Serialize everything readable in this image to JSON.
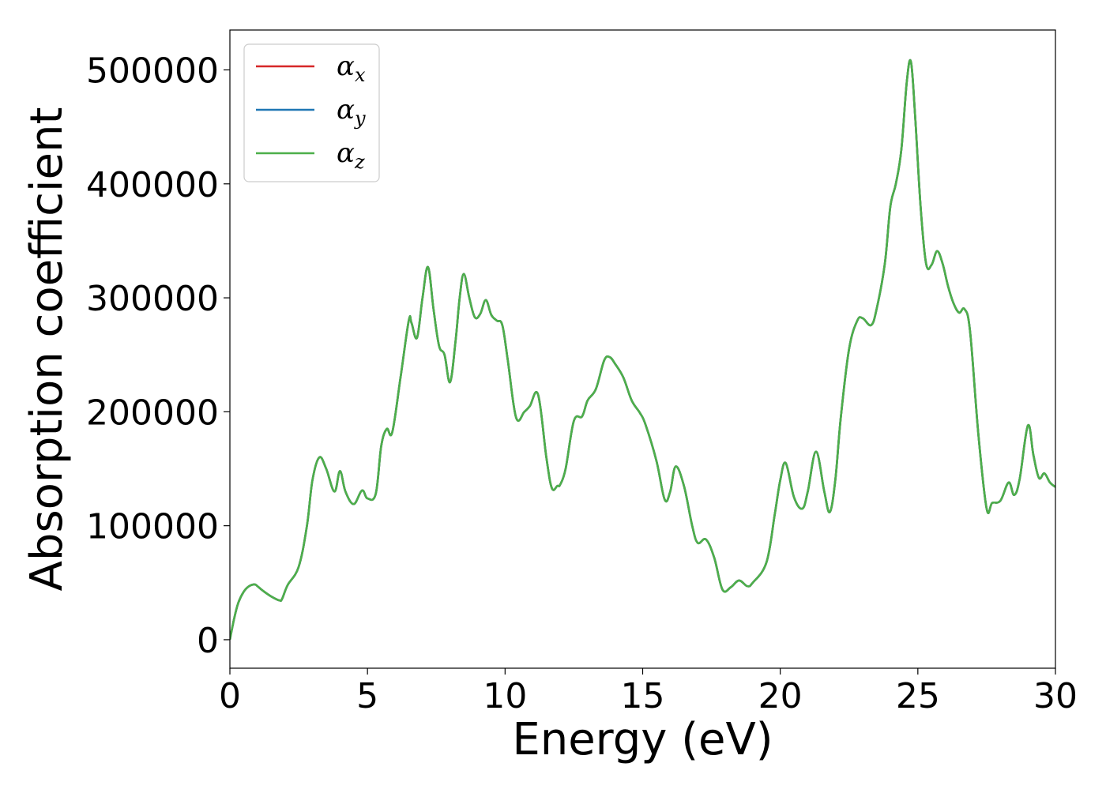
{
  "chart_data": {
    "type": "line",
    "title": "",
    "xlabel": "Energy (eV)",
    "ylabel": "Absorption coefficient",
    "xlim": [
      0,
      30
    ],
    "ylim": [
      -25000,
      535000
    ],
    "x_ticks": [
      0,
      5,
      10,
      15,
      20,
      25,
      30
    ],
    "x_tick_labels": [
      "0",
      "5",
      "10",
      "15",
      "20",
      "25",
      "30"
    ],
    "y_ticks": [
      0,
      100000,
      200000,
      300000,
      400000,
      500000
    ],
    "y_tick_labels": [
      "0",
      "100000",
      "200000",
      "300000",
      "400000",
      "500000"
    ],
    "grid": false,
    "legend_position": "top-left",
    "colors": {
      "alpha_x": "#d62728",
      "alpha_y": "#1f77b4",
      "alpha_z": "#4daf4a"
    },
    "series": [
      {
        "name": "α_x",
        "legend_symbol": "α",
        "legend_subscript": "x",
        "color": "#d62728",
        "x": [
          0,
          0.15,
          0.3,
          0.5,
          0.7,
          0.9,
          1.0,
          1.2,
          1.5,
          1.8,
          1.9,
          2.1,
          2.5,
          2.8,
          3.0,
          3.25,
          3.5,
          3.8,
          4.0,
          4.2,
          4.5,
          4.8,
          5.0,
          5.3,
          5.5,
          5.7,
          5.9,
          6.2,
          6.5,
          6.6,
          6.8,
          7.0,
          7.2,
          7.4,
          7.6,
          7.8,
          8.0,
          8.2,
          8.35,
          8.5,
          8.7,
          8.9,
          9.1,
          9.3,
          9.5,
          9.7,
          9.9,
          10.1,
          10.4,
          10.7,
          10.9,
          11.2,
          11.5,
          11.7,
          11.9,
          12.0,
          12.2,
          12.5,
          12.8,
          13.0,
          13.3,
          13.6,
          13.8,
          14.0,
          14.3,
          14.6,
          14.9,
          15.1,
          15.5,
          15.8,
          16.0,
          16.2,
          16.5,
          16.8,
          17.0,
          17.3,
          17.6,
          17.9,
          18.2,
          18.5,
          18.8,
          19.0,
          19.5,
          19.8,
          20.0,
          20.2,
          20.5,
          20.8,
          21.0,
          21.3,
          21.6,
          21.8,
          22.0,
          22.2,
          22.5,
          22.8,
          23.0,
          23.3,
          23.5,
          23.8,
          24.0,
          24.2,
          24.4,
          24.6,
          24.75,
          24.9,
          25.1,
          25.3,
          25.5,
          25.7,
          25.9,
          26.1,
          26.3,
          26.5,
          26.7,
          26.9,
          27.2,
          27.5,
          27.7,
          28.0,
          28.3,
          28.5,
          28.7,
          29.0,
          29.2,
          29.4,
          29.6,
          29.8,
          30.0
        ],
        "y": [
          0,
          18000,
          32000,
          42000,
          47000,
          48500,
          47000,
          43000,
          38000,
          34500,
          36000,
          48000,
          64000,
          100000,
          140000,
          160000,
          150000,
          130000,
          148000,
          130000,
          119000,
          131000,
          124000,
          128000,
          170000,
          185000,
          182000,
          230000,
          280000,
          278000,
          265000,
          300000,
          327000,
          290000,
          258000,
          250000,
          226000,
          262000,
          300000,
          321000,
          300000,
          283000,
          286000,
          298000,
          285000,
          280000,
          276000,
          245000,
          195000,
          200000,
          205000,
          215000,
          160000,
          133000,
          135000,
          136000,
          150000,
          192000,
          196000,
          210000,
          220000,
          245000,
          248000,
          242000,
          230000,
          210000,
          199000,
          189000,
          157000,
          123000,
          130000,
          152000,
          135000,
          100000,
          85000,
          88000,
          72000,
          44000,
          46000,
          52000,
          47000,
          50000,
          68000,
          110000,
          140000,
          155000,
          125000,
          115000,
          130000,
          165000,
          130000,
          112000,
          140000,
          195000,
          255000,
          280000,
          282000,
          276000,
          290000,
          330000,
          380000,
          400000,
          430000,
          490000,
          507000,
          460000,
          380000,
          330000,
          329000,
          341000,
          330000,
          310000,
          295000,
          287000,
          290000,
          270000,
          180000,
          115000,
          120000,
          122000,
          138000,
          127000,
          141000,
          188000,
          162000,
          142000,
          146000,
          138000,
          134000
        ]
      },
      {
        "name": "α_y",
        "legend_symbol": "α",
        "legend_subscript": "y",
        "color": "#1f77b4",
        "x": [
          0,
          0.15,
          0.3,
          0.5,
          0.7,
          0.9,
          1.0,
          1.2,
          1.5,
          1.8,
          1.9,
          2.1,
          2.5,
          2.8,
          3.0,
          3.25,
          3.5,
          3.8,
          4.0,
          4.2,
          4.5,
          4.8,
          5.0,
          5.3,
          5.5,
          5.7,
          5.9,
          6.2,
          6.5,
          6.6,
          6.8,
          7.0,
          7.2,
          7.4,
          7.6,
          7.8,
          8.0,
          8.2,
          8.35,
          8.5,
          8.7,
          8.9,
          9.1,
          9.3,
          9.5,
          9.7,
          9.9,
          10.1,
          10.4,
          10.7,
          10.9,
          11.2,
          11.5,
          11.7,
          11.9,
          12.0,
          12.2,
          12.5,
          12.8,
          13.0,
          13.3,
          13.6,
          13.8,
          14.0,
          14.3,
          14.6,
          14.9,
          15.1,
          15.5,
          15.8,
          16.0,
          16.2,
          16.5,
          16.8,
          17.0,
          17.3,
          17.6,
          17.9,
          18.2,
          18.5,
          18.8,
          19.0,
          19.5,
          19.8,
          20.0,
          20.2,
          20.5,
          20.8,
          21.0,
          21.3,
          21.6,
          21.8,
          22.0,
          22.2,
          22.5,
          22.8,
          23.0,
          23.3,
          23.5,
          23.8,
          24.0,
          24.2,
          24.4,
          24.6,
          24.75,
          24.9,
          25.1,
          25.3,
          25.5,
          25.7,
          25.9,
          26.1,
          26.3,
          26.5,
          26.7,
          26.9,
          27.2,
          27.5,
          27.7,
          28.0,
          28.3,
          28.5,
          28.7,
          29.0,
          29.2,
          29.4,
          29.6,
          29.8,
          30.0
        ],
        "y": [
          0,
          18000,
          32000,
          42000,
          47000,
          48500,
          47000,
          43000,
          38000,
          34500,
          36000,
          48000,
          64000,
          100000,
          140000,
          160000,
          150000,
          130000,
          148000,
          130000,
          119000,
          131000,
          124000,
          128000,
          170000,
          185000,
          182000,
          230000,
          280000,
          278000,
          265000,
          300000,
          327000,
          290000,
          258000,
          250000,
          226000,
          262000,
          300000,
          321000,
          300000,
          283000,
          286000,
          298000,
          285000,
          280000,
          276000,
          245000,
          195000,
          200000,
          205000,
          215000,
          160000,
          133000,
          135000,
          136000,
          150000,
          192000,
          196000,
          210000,
          220000,
          245000,
          248000,
          242000,
          230000,
          210000,
          199000,
          189000,
          157000,
          123000,
          130000,
          152000,
          135000,
          100000,
          85000,
          88000,
          72000,
          44000,
          46000,
          52000,
          47000,
          50000,
          68000,
          110000,
          140000,
          155000,
          125000,
          115000,
          130000,
          165000,
          130000,
          112000,
          140000,
          195000,
          255000,
          280000,
          282000,
          276000,
          290000,
          330000,
          380000,
          400000,
          430000,
          490000,
          507000,
          460000,
          380000,
          330000,
          329000,
          341000,
          330000,
          310000,
          295000,
          287000,
          290000,
          270000,
          180000,
          115000,
          120000,
          122000,
          138000,
          127000,
          141000,
          188000,
          162000,
          142000,
          146000,
          138000,
          134000
        ]
      },
      {
        "name": "α_z",
        "legend_symbol": "α",
        "legend_subscript": "z",
        "color": "#4daf4a",
        "x": [
          0,
          0.15,
          0.3,
          0.5,
          0.7,
          0.9,
          1.0,
          1.2,
          1.5,
          1.8,
          1.9,
          2.1,
          2.5,
          2.8,
          3.0,
          3.25,
          3.5,
          3.8,
          4.0,
          4.2,
          4.5,
          4.8,
          5.0,
          5.3,
          5.5,
          5.7,
          5.9,
          6.2,
          6.5,
          6.6,
          6.8,
          7.0,
          7.2,
          7.4,
          7.6,
          7.8,
          8.0,
          8.2,
          8.35,
          8.5,
          8.7,
          8.9,
          9.1,
          9.3,
          9.5,
          9.7,
          9.9,
          10.1,
          10.4,
          10.7,
          10.9,
          11.2,
          11.5,
          11.7,
          11.9,
          12.0,
          12.2,
          12.5,
          12.8,
          13.0,
          13.3,
          13.6,
          13.8,
          14.0,
          14.3,
          14.6,
          14.9,
          15.1,
          15.5,
          15.8,
          16.0,
          16.2,
          16.5,
          16.8,
          17.0,
          17.3,
          17.6,
          17.9,
          18.2,
          18.5,
          18.8,
          19.0,
          19.5,
          19.8,
          20.0,
          20.2,
          20.5,
          20.8,
          21.0,
          21.3,
          21.6,
          21.8,
          22.0,
          22.2,
          22.5,
          22.8,
          23.0,
          23.3,
          23.5,
          23.8,
          24.0,
          24.2,
          24.4,
          24.6,
          24.75,
          24.9,
          25.1,
          25.3,
          25.5,
          25.7,
          25.9,
          26.1,
          26.3,
          26.5,
          26.7,
          26.9,
          27.2,
          27.5,
          27.7,
          28.0,
          28.3,
          28.5,
          28.7,
          29.0,
          29.2,
          29.4,
          29.6,
          29.8,
          30.0
        ],
        "y": [
          0,
          18000,
          32000,
          42000,
          47000,
          48500,
          47000,
          43000,
          38000,
          34500,
          36000,
          48000,
          64000,
          100000,
          140000,
          160000,
          150000,
          130000,
          148000,
          130000,
          119000,
          131000,
          124000,
          128000,
          170000,
          185000,
          182000,
          230000,
          280000,
          278000,
          265000,
          300000,
          327000,
          290000,
          258000,
          250000,
          226000,
          262000,
          300000,
          321000,
          300000,
          283000,
          286000,
          298000,
          285000,
          280000,
          276000,
          245000,
          195000,
          200000,
          205000,
          215000,
          160000,
          133000,
          135000,
          136000,
          150000,
          192000,
          196000,
          210000,
          220000,
          245000,
          248000,
          242000,
          230000,
          210000,
          199000,
          189000,
          157000,
          123000,
          130000,
          152000,
          135000,
          100000,
          85000,
          88000,
          72000,
          44000,
          46000,
          52000,
          47000,
          50000,
          68000,
          110000,
          140000,
          155000,
          125000,
          115000,
          130000,
          165000,
          130000,
          112000,
          140000,
          195000,
          255000,
          280000,
          282000,
          276000,
          290000,
          330000,
          380000,
          400000,
          430000,
          490000,
          507000,
          460000,
          380000,
          330000,
          329000,
          341000,
          330000,
          310000,
          295000,
          287000,
          290000,
          270000,
          180000,
          115000,
          120000,
          122000,
          138000,
          127000,
          141000,
          188000,
          162000,
          142000,
          146000,
          138000,
          134000
        ]
      }
    ]
  }
}
